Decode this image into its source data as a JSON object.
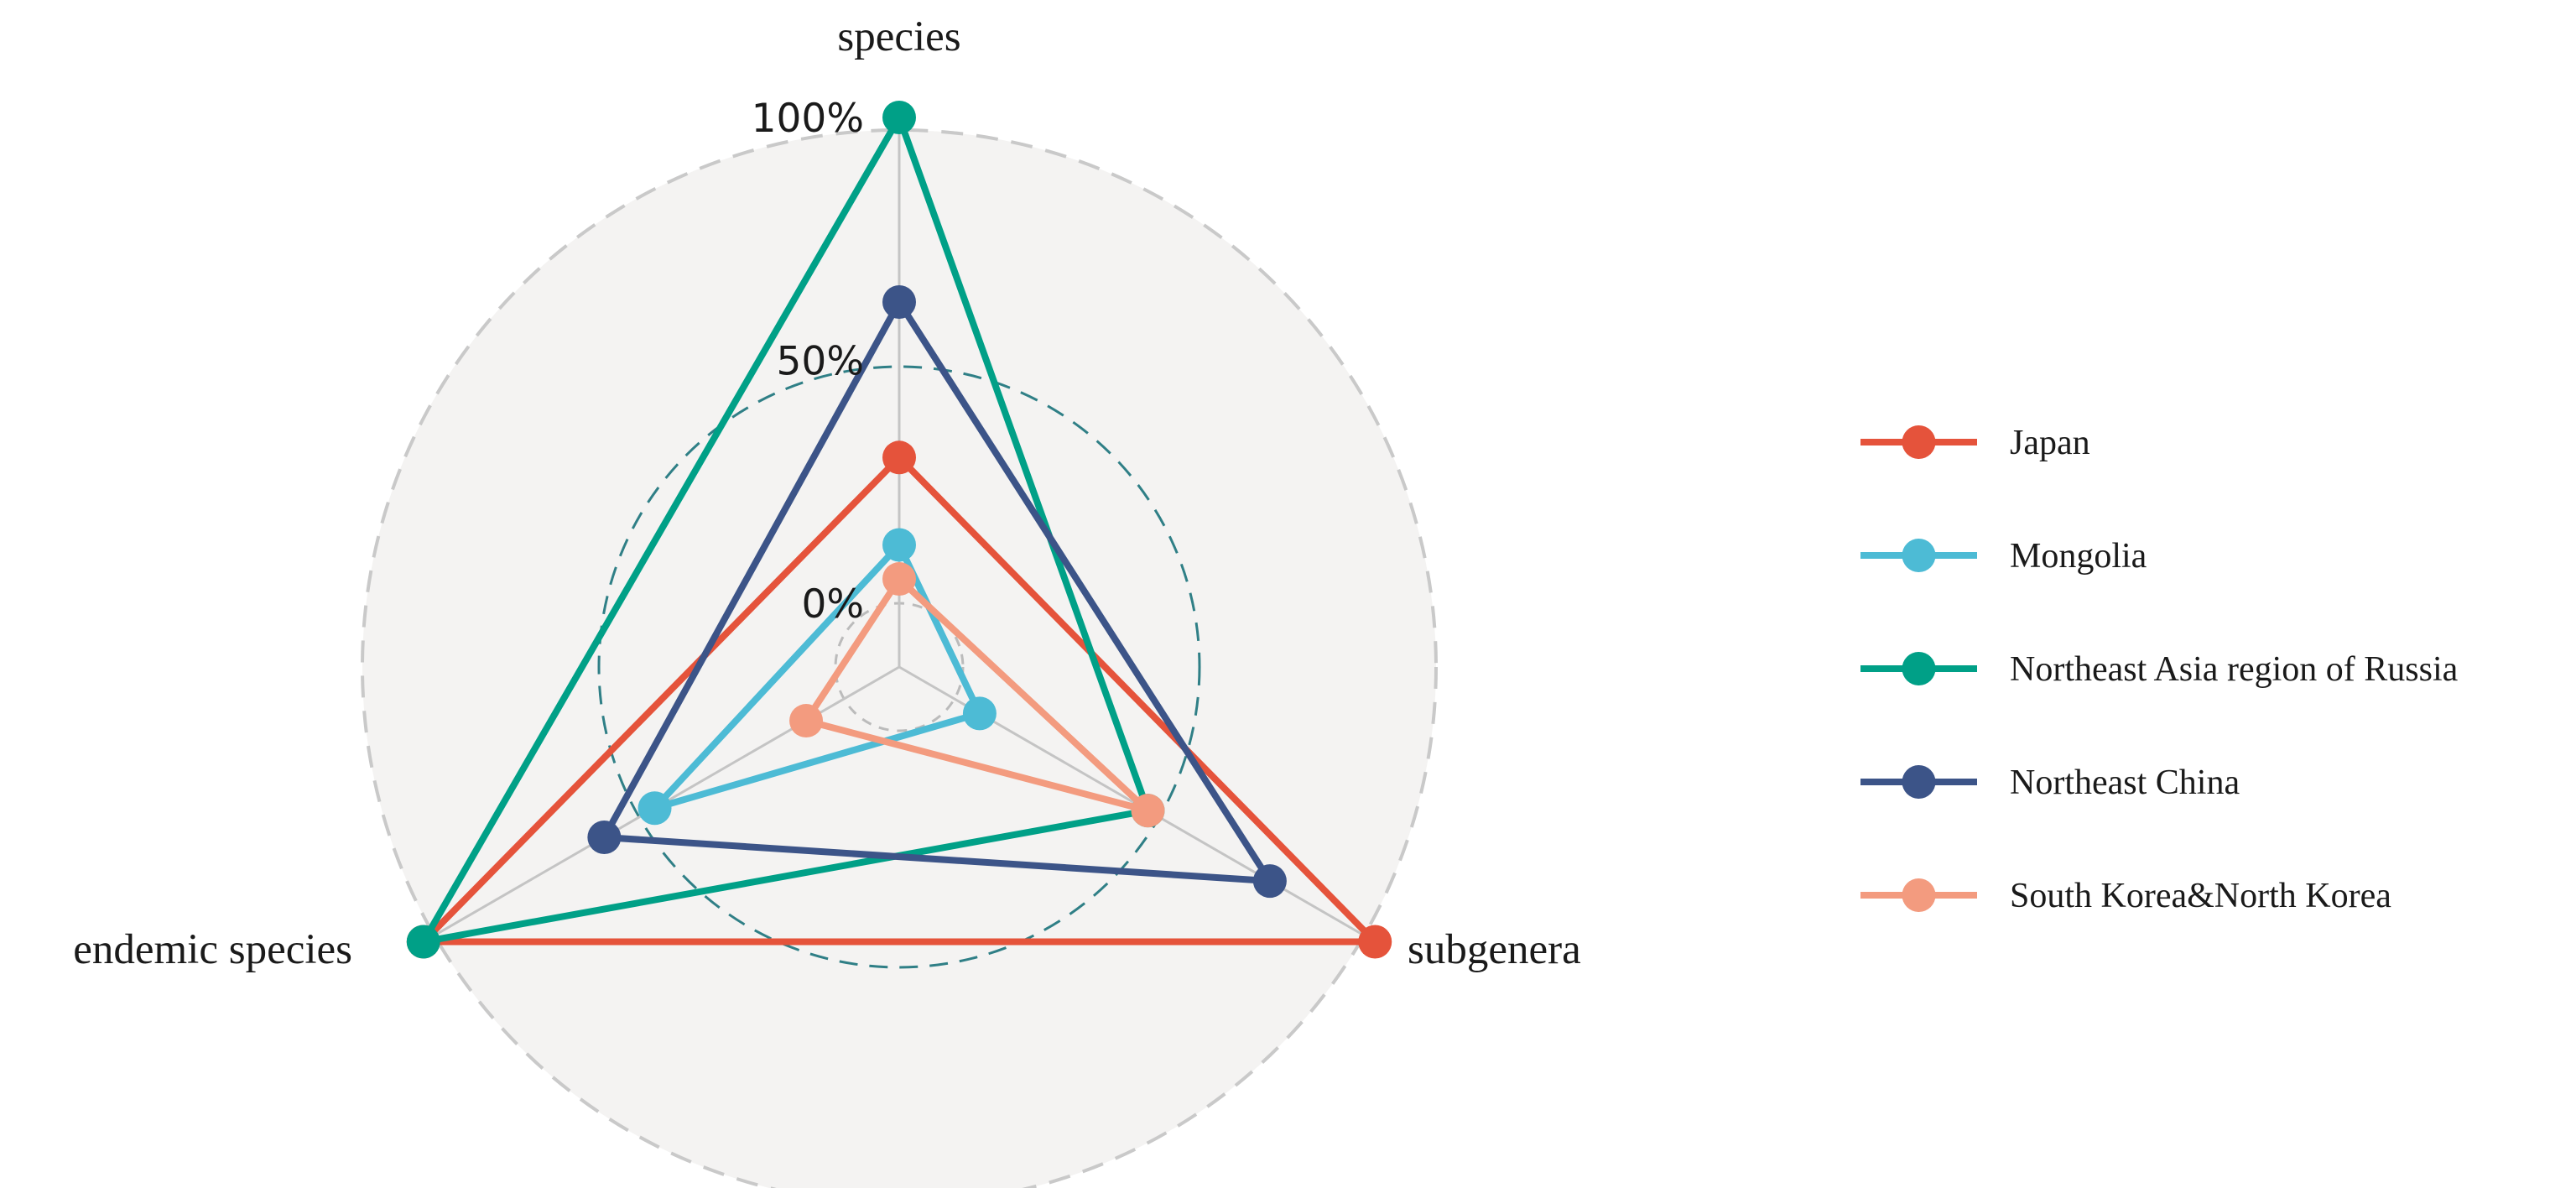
{
  "chart_data": {
    "type": "radar",
    "axes": [
      "species",
      "subgenera",
      "endemic species"
    ],
    "ticks": [
      "0%",
      "50%",
      "100%"
    ],
    "range": [
      0,
      100
    ],
    "unit": "%",
    "grid": "dashed circles",
    "legend_position": "right",
    "series": [
      {
        "name": "Japan",
        "color": "#E5533B",
        "values": [
          30,
          100,
          100
        ]
      },
      {
        "name": "Mongolia",
        "color": "#4DBBD5",
        "values": [
          12,
          6,
          45
        ]
      },
      {
        "name": "Northeast Asia region of Russia",
        "color": "#00A087",
        "values": [
          100,
          46,
          100
        ]
      },
      {
        "name": "Northeast China",
        "color": "#3C5488",
        "values": [
          62,
          75,
          57
        ]
      },
      {
        "name": "South Korea&North Korea",
        "color": "#F39B7F",
        "values": [
          5,
          46,
          9
        ]
      }
    ]
  }
}
